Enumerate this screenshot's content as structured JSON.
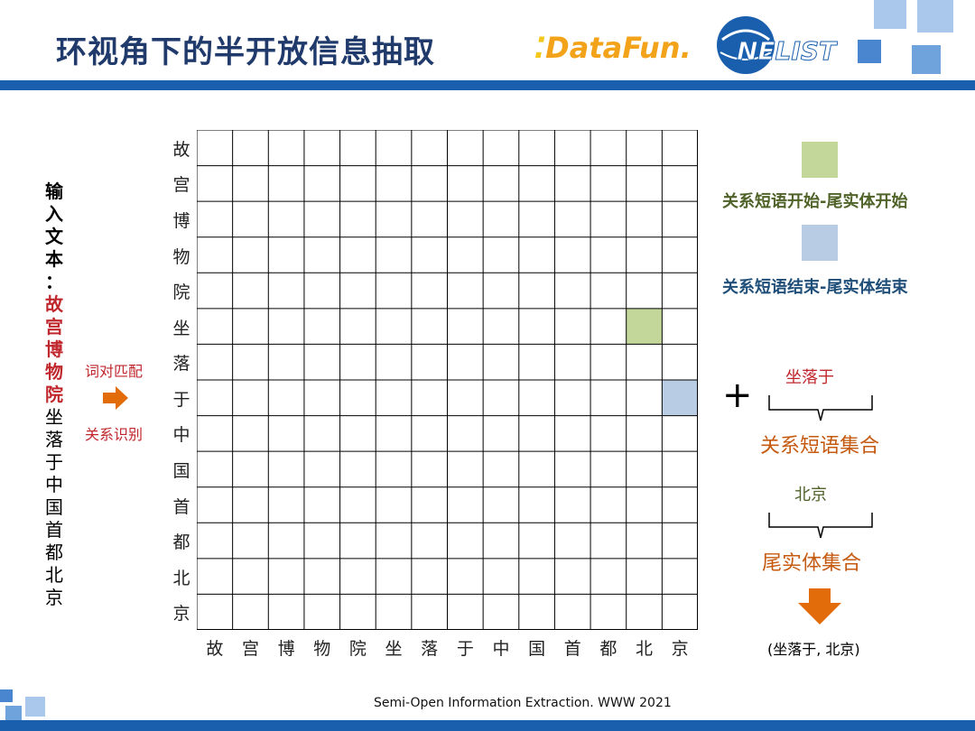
{
  "header": {
    "title": "环视角下的半开放信息抽取",
    "logo_datafun": "DataFun.",
    "logo_nelist": "NELIST"
  },
  "input": {
    "label_chars": [
      "输",
      "入",
      "文",
      "本",
      "："
    ],
    "entity_chars": [
      "故",
      "宫",
      "博",
      "物",
      "院"
    ],
    "rest_chars": [
      "坐",
      "落",
      "于",
      "中",
      "国",
      "首",
      "都",
      "北",
      "京"
    ]
  },
  "steps": {
    "match": "词对匹配",
    "recognize": "关系识别"
  },
  "grid": {
    "row_labels": [
      "故",
      "宫",
      "博",
      "物",
      "院",
      "坐",
      "落",
      "于",
      "中",
      "国",
      "首",
      "都",
      "北",
      "京"
    ],
    "col_labels": [
      "故",
      "宫",
      "博",
      "物",
      "院",
      "坐",
      "落",
      "于",
      "中",
      "国",
      "首",
      "都",
      "北",
      "京"
    ],
    "highlights": [
      {
        "row": 5,
        "col": 12,
        "type": "start",
        "color": "#c4d79b"
      },
      {
        "row": 7,
        "col": 13,
        "type": "end",
        "color": "#b8cce4"
      }
    ]
  },
  "legend": {
    "start": {
      "label": "关系短语开始-尾实体开始",
      "color": "#c4d79b",
      "text_color": "#4f6228"
    },
    "end": {
      "label": "关系短语结束-尾实体结束",
      "color": "#b8cce4",
      "text_color": "#1f4e79"
    }
  },
  "right_panel": {
    "plus": "+",
    "relation_phrase": "坐落于",
    "relation_set": "关系短语集合",
    "tail_entity": "北京",
    "tail_set": "尾实体集合",
    "result": "(坐落于, 北京)",
    "accent": "#c55a11"
  },
  "footer": {
    "citation": "Semi-Open Information Extraction. WWW 2021"
  }
}
